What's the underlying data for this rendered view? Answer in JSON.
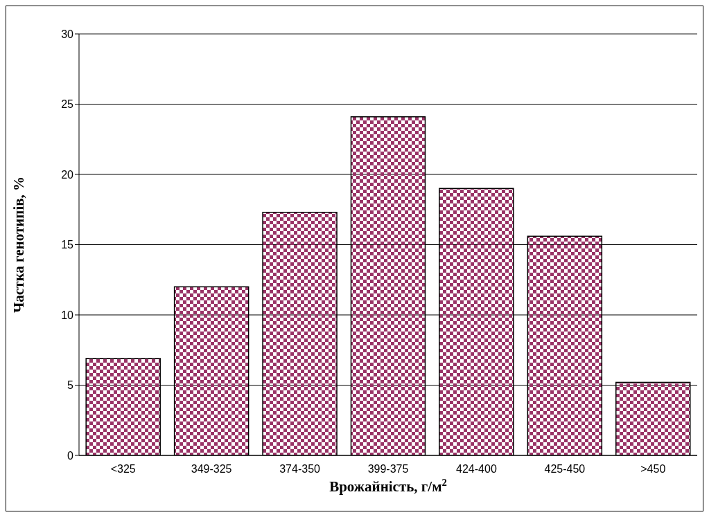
{
  "chart_data": {
    "type": "bar",
    "xlabel": "Врожайність, г/м$^{2}$",
    "ylabel": "Частка генотипів, %",
    "categories": [
      "<325",
      "349-325",
      "374-350",
      "399-375",
      "424-400",
      "425-450",
      ">450"
    ],
    "values": [
      6.9,
      12.0,
      17.3,
      24.1,
      19.0,
      15.6,
      5.2
    ],
    "color": "#993366",
    "ylim": [
      0,
      30
    ],
    "yticks": [
      0,
      5,
      10,
      15,
      20,
      25,
      30
    ],
    "grid": "y"
  }
}
